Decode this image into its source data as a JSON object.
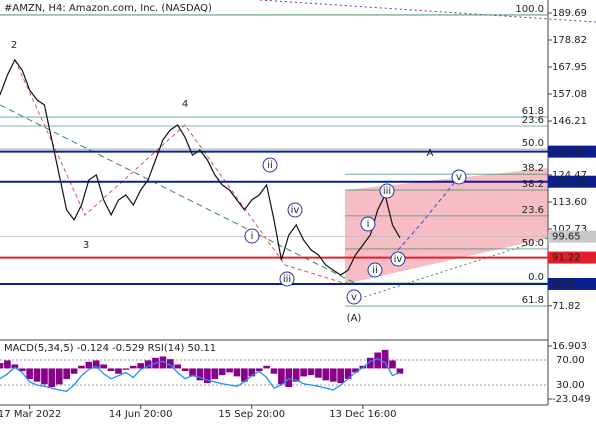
{
  "chart_data": [
    {
      "type": "line",
      "title": "#AMZN, H4:  Amazon.com, Inc. (NASDAQ)",
      "color": "#111111",
      "x": [
        0,
        1,
        2,
        3,
        4,
        5,
        6,
        7,
        8,
        9,
        10,
        11,
        12,
        13,
        14,
        15,
        16,
        17,
        18,
        19,
        20,
        21,
        22,
        23,
        24,
        25,
        26,
        27,
        28,
        29,
        30,
        31,
        32,
        33,
        34,
        35,
        36,
        37,
        38,
        39,
        40,
        41,
        42,
        43,
        44,
        45,
        46,
        47,
        48,
        49,
        50,
        51,
        52,
        53,
        54
      ],
      "values": [
        156.7,
        164.7,
        170.8,
        166.7,
        158.7,
        154.7,
        152.7,
        138.6,
        124.5,
        110.4,
        106.4,
        112.4,
        122.5,
        124.5,
        114.4,
        108.4,
        114.4,
        116.4,
        112.4,
        118.4,
        122.5,
        130.5,
        138.6,
        142.6,
        144.6,
        139.6,
        132.5,
        134.5,
        130.5,
        124.5,
        120.5,
        118.4,
        114.4,
        110.4,
        114.4,
        116.4,
        120.5,
        106.4,
        90.3,
        100.3,
        104.4,
        98.3,
        94.3,
        92.3,
        88.2,
        86.2,
        84.2,
        86.2,
        92.3,
        96.3,
        100.3,
        110.4,
        116.4,
        104.4,
        99.2
      ],
      "xlim": [
        0,
        74
      ],
      "xticks": [
        {
          "value": 4,
          "label": "17 Mar 2022"
        },
        {
          "value": 19,
          "label": "14 Jun 20:00"
        },
        {
          "value": 34,
          "label": "15 Sep 20:00"
        },
        {
          "value": 49,
          "label": "13 Dec 16:00"
        }
      ],
      "ylim": [
        58.85,
        194.92
      ],
      "yticks": [
        189.69,
        178.82,
        167.95,
        157.08,
        146.21,
        124.47,
        {
          "value": 113.6,
          "label": "113.60"
        },
        102.73,
        71.82
      ],
      "levels": [
        {
          "value": 133.88,
          "color": "#0d1f8c"
        },
        {
          "value": 121.76,
          "color": "#0d1f8c"
        },
        {
          "value": 91.22,
          "color": "#e0202a"
        },
        {
          "value": 80.6,
          "color": "#0d1f8c"
        }
      ],
      "current_price": 99.65,
      "fib_left": [
        {
          "label": "100.0",
          "value": 188.9
        },
        {
          "label": "61.8",
          "value": 147.8
        },
        {
          "label": "23.6",
          "value": 144.2
        },
        {
          "label": "50.0",
          "value": 134.9
        }
      ],
      "fib_right": [
        {
          "label": "38.2",
          "value": 124.8
        },
        {
          "label": "38.2",
          "value": 118.4
        },
        {
          "label": "23.6",
          "value": 108.0
        },
        {
          "label": "50.0",
          "value": 94.7
        },
        {
          "label": "0.0",
          "value": 81.0
        },
        {
          "label": "61.8",
          "value": 71.7
        }
      ],
      "waves": [
        "2",
        "3",
        "4",
        "A",
        "(A)",
        "i",
        "ii",
        "iii",
        "iv",
        "v",
        "i",
        "ii",
        "iii",
        "iv",
        "v"
      ]
    },
    {
      "type": "bar",
      "title": "MACD(5,34,5) -0.124 -0.529 RSI(14) 50.11",
      "color": "#8b008b",
      "x": [
        0,
        1,
        2,
        3,
        4,
        5,
        6,
        7,
        8,
        9,
        10,
        11,
        12,
        13,
        14,
        15,
        16,
        17,
        18,
        19,
        20,
        21,
        22,
        23,
        24,
        25,
        26,
        27,
        28,
        29,
        30,
        31,
        32,
        33,
        34,
        35,
        36,
        37,
        38,
        39,
        40,
        41,
        42,
        43,
        44,
        45,
        46,
        47,
        48,
        49,
        50,
        51,
        52,
        53,
        54
      ],
      "values": [
        4,
        6,
        3,
        -2,
        -8,
        -10,
        -12,
        -14,
        -12,
        -8,
        -4,
        2,
        5,
        6,
        3,
        -2,
        -4,
        -1,
        2,
        4,
        6,
        8,
        9,
        7,
        3,
        -2,
        -6,
        -9,
        -11,
        -8,
        -5,
        -3,
        -6,
        -10,
        -6,
        -2,
        2,
        -4,
        -12,
        -14,
        -10,
        -6,
        -5,
        -7,
        -9,
        -10,
        -11,
        -8,
        -3,
        2,
        8,
        12,
        14,
        6,
        -4
      ],
      "series": [
        {
          "color": "#1e90ff",
          "axis": "y2",
          "values": [
            40,
            48,
            58,
            50,
            35,
            30,
            28,
            25,
            22,
            20,
            30,
            45,
            55,
            60,
            48,
            40,
            45,
            50,
            42,
            55,
            60,
            65,
            68,
            62,
            50,
            40,
            45,
            42,
            38,
            35,
            32,
            30,
            28,
            35,
            45,
            52,
            42,
            25,
            30,
            40,
            38,
            32,
            30,
            28,
            25,
            22,
            30,
            40,
            50,
            58,
            68,
            72,
            66,
            45,
            50
          ]
        }
      ],
      "xlim": [
        0,
        74
      ],
      "ylim": [
        -23.049,
        16.903
      ],
      "yticks": [
        16.903,
        -23.049
      ],
      "y2lim": [
        7.6,
        92.4
      ],
      "y2ticks": [
        {
          "value": 70,
          "label": "70.00"
        },
        {
          "value": 30,
          "label": "30.00"
        }
      ]
    }
  ]
}
